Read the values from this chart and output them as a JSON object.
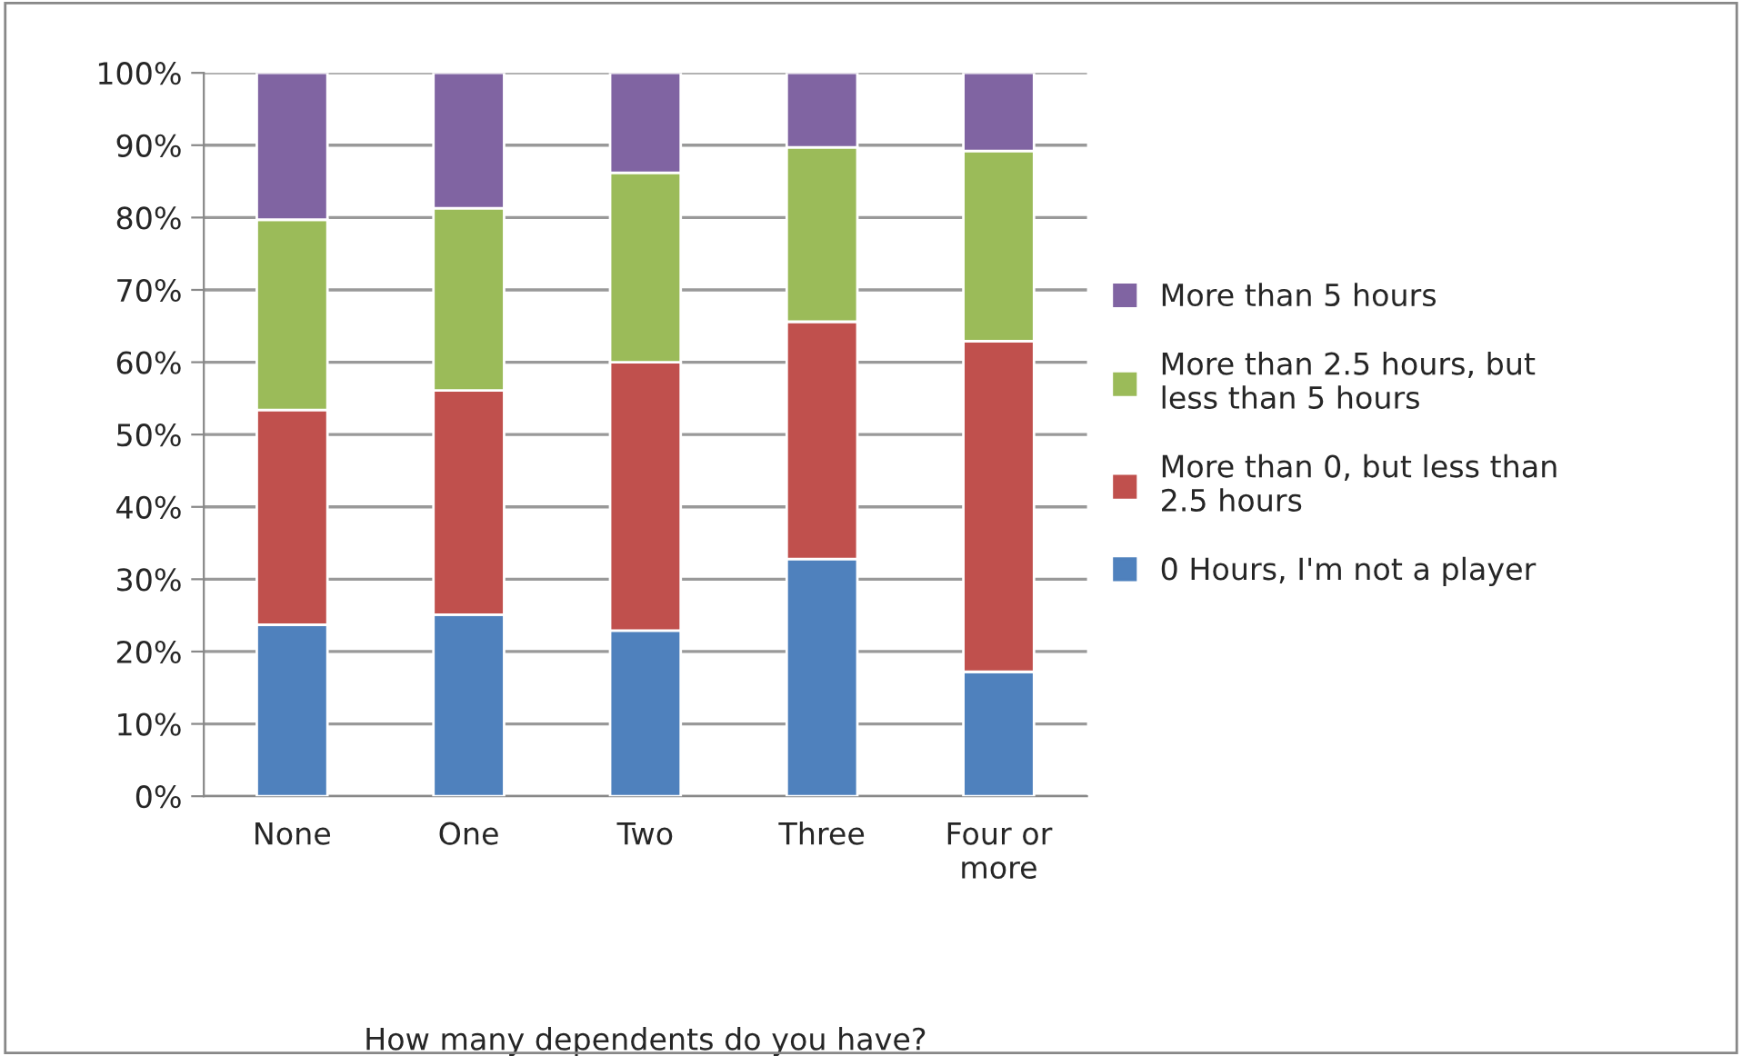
{
  "chart_data": {
    "type": "bar",
    "stacked": true,
    "xlabel": "How many dependents do you have?",
    "categories": [
      "None",
      "One",
      "Two",
      "Three",
      "Four or\nmore"
    ],
    "series": [
      {
        "name": "0 Hours, I'm not a player",
        "color": "#4f81bd",
        "values": [
          23.7,
          25.1,
          22.9,
          32.8,
          17.2
        ]
      },
      {
        "name": "More than 0, but less than\n2.5 hours",
        "color": "#c0504d",
        "values": [
          29.7,
          31.0,
          37.1,
          32.8,
          45.7
        ]
      },
      {
        "name": "More than 2.5 hours, but\nless than 5 hours",
        "color": "#9bbb59",
        "values": [
          26.3,
          25.2,
          26.2,
          24.1,
          26.3
        ]
      },
      {
        "name": "More than 5 hours",
        "color": "#8064a2",
        "values": [
          20.3,
          18.7,
          13.8,
          10.3,
          10.8
        ]
      }
    ],
    "ylim": [
      0,
      100
    ],
    "yticks": [
      {
        "value": 0,
        "label": "0%"
      },
      {
        "value": 10,
        "label": "10%"
      },
      {
        "value": 20,
        "label": "20%"
      },
      {
        "value": 30,
        "label": "30%"
      },
      {
        "value": 40,
        "label": "40%"
      },
      {
        "value": 50,
        "label": "50%"
      },
      {
        "value": 60,
        "label": "60%"
      },
      {
        "value": 70,
        "label": "70%"
      },
      {
        "value": 80,
        "label": "80%"
      },
      {
        "value": 90,
        "label": "90%"
      },
      {
        "value": 100,
        "label": "100%"
      }
    ],
    "grid": "y",
    "legend": "right"
  }
}
